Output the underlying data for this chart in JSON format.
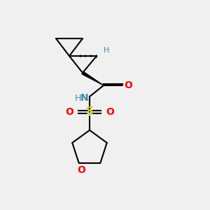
{
  "background_color": "#f0f0f0",
  "bond_color": "#000000",
  "atoms": {
    "N": {
      "color": "#4488aa",
      "label": "N"
    },
    "O": {
      "color": "#ff0000",
      "label": "O"
    },
    "S": {
      "color": "#cccc00",
      "label": "S"
    },
    "H_stereo": {
      "color": "#4488aa",
      "label": "H"
    },
    "H_N": {
      "color": "#4488aa",
      "label": "H"
    }
  },
  "figsize": [
    3.0,
    3.0
  ],
  "dpi": 100
}
